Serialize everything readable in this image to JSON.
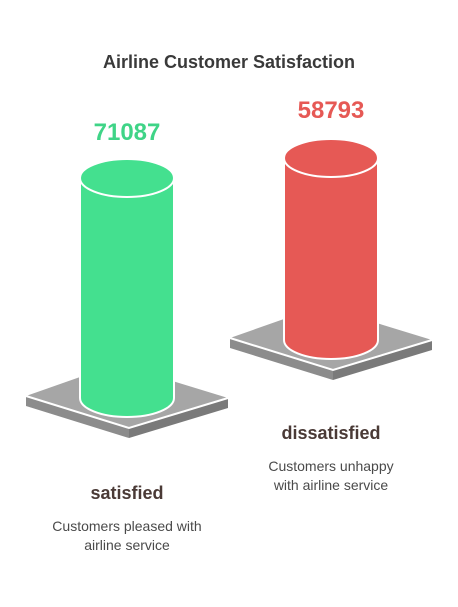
{
  "chart_data": {
    "type": "bar",
    "title": "Airline Customer Satisfaction",
    "categories": [
      "satisfied",
      "dissatisfied"
    ],
    "values": [
      71087,
      58793
    ],
    "descriptions": [
      [
        "Customers pleased with",
        "airline service"
      ],
      [
        "Customers unhappy",
        "with airline service"
      ]
    ],
    "colors": [
      "#44E08F",
      "#E65955"
    ],
    "value_label_colors": [
      "#3FD487",
      "#E65955"
    ]
  }
}
